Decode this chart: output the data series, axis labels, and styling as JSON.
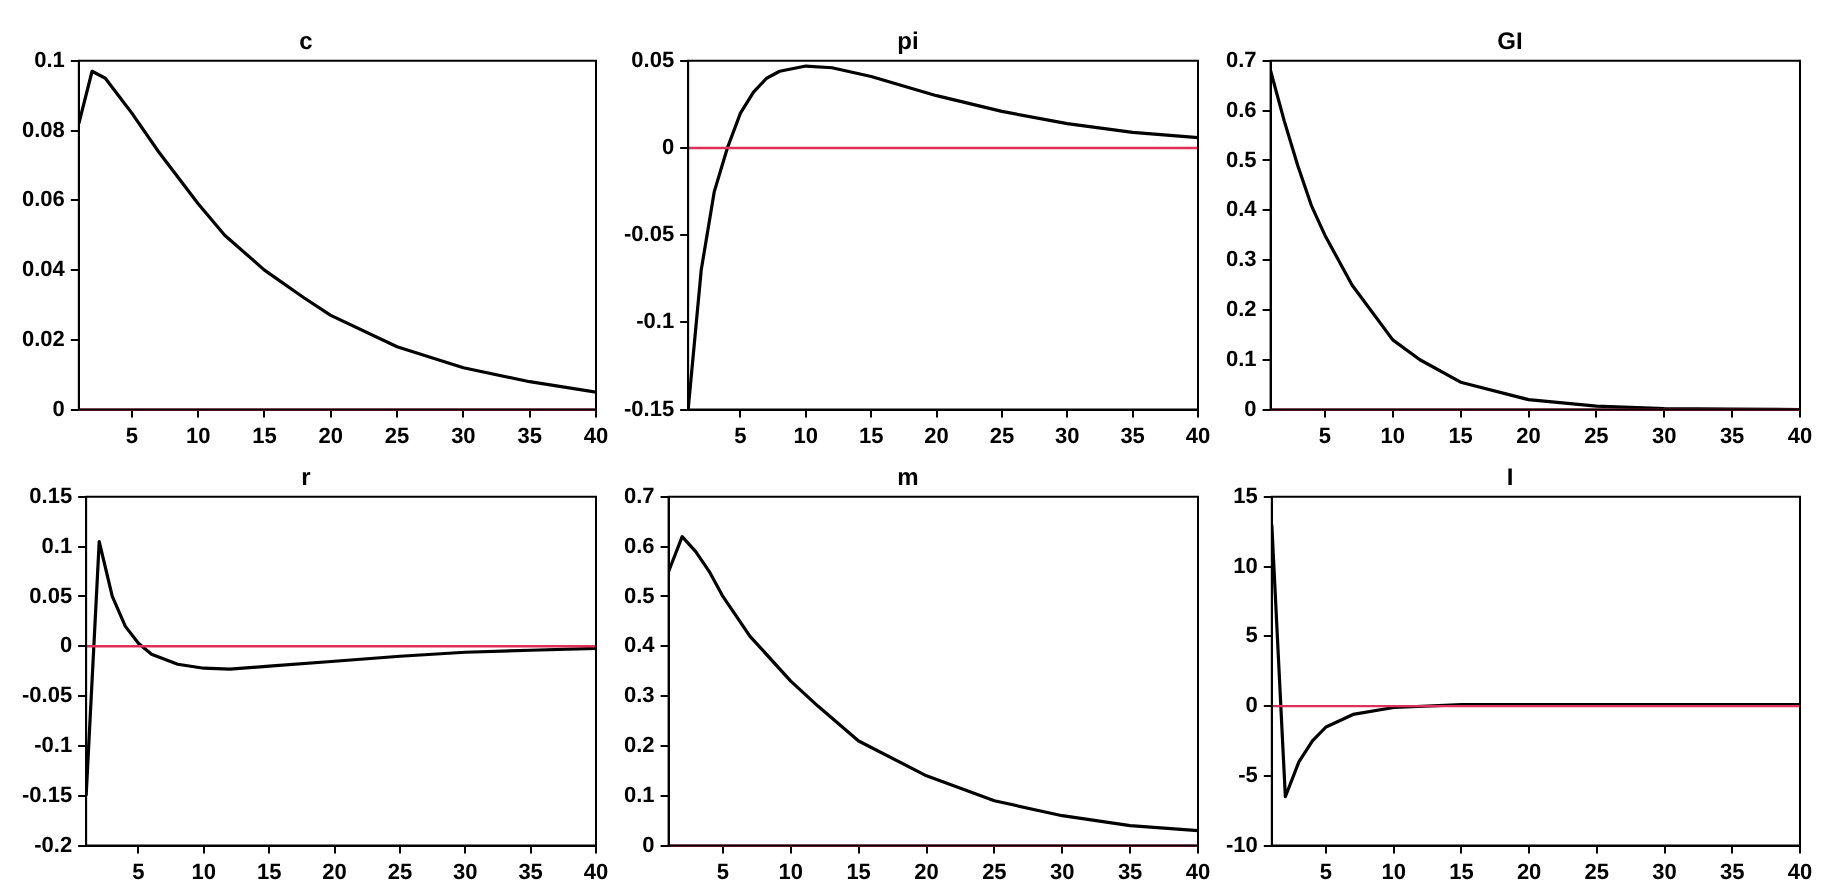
{
  "chart_data": [
    {
      "type": "line",
      "title": "c",
      "x": [
        1,
        2,
        3,
        4,
        5,
        7,
        10,
        12,
        15,
        18,
        20,
        25,
        30,
        35,
        40
      ],
      "series": [
        {
          "color": "#000000",
          "values": [
            0.082,
            0.097,
            0.095,
            0.09,
            0.085,
            0.074,
            0.059,
            0.05,
            0.04,
            0.032,
            0.027,
            0.018,
            0.012,
            0.008,
            0.005
          ]
        }
      ],
      "xlim": [
        1,
        40
      ],
      "xticks": [
        5,
        10,
        15,
        20,
        25,
        30,
        35,
        40
      ],
      "ylim": [
        0,
        0.1
      ],
      "yticks": [
        0,
        0.02,
        0.04,
        0.06,
        0.08,
        0.1
      ],
      "ref_lines": [
        {
          "axis": "y",
          "value": 0,
          "color": "#e0305a"
        }
      ]
    },
    {
      "type": "line",
      "title": "pi",
      "x": [
        1,
        2,
        3,
        4,
        5,
        6,
        7,
        8,
        10,
        12,
        15,
        20,
        25,
        30,
        35,
        40
      ],
      "series": [
        {
          "color": "#000000",
          "values": [
            -0.15,
            -0.07,
            -0.025,
            0.0,
            0.02,
            0.032,
            0.04,
            0.044,
            0.047,
            0.046,
            0.041,
            0.03,
            0.021,
            0.014,
            0.009,
            0.006
          ]
        }
      ],
      "xlim": [
        1,
        40
      ],
      "xticks": [
        5,
        10,
        15,
        20,
        25,
        30,
        35,
        40
      ],
      "ylim": [
        -0.15,
        0.05
      ],
      "yticks": [
        -0.15,
        -0.1,
        -0.05,
        0,
        0.05
      ],
      "ref_lines": [
        {
          "axis": "y",
          "value": 0,
          "color": "#e0305a"
        }
      ]
    },
    {
      "type": "line",
      "title": "GI",
      "x": [
        1,
        2,
        3,
        4,
        5,
        7,
        10,
        12,
        15,
        20,
        25,
        30,
        35,
        40
      ],
      "series": [
        {
          "color": "#000000",
          "values": [
            0.68,
            0.58,
            0.49,
            0.41,
            0.35,
            0.25,
            0.14,
            0.1,
            0.055,
            0.02,
            0.007,
            0.002,
            0.001,
            0
          ]
        }
      ],
      "xlim": [
        1,
        40
      ],
      "xticks": [
        5,
        10,
        15,
        20,
        25,
        30,
        35,
        40
      ],
      "ylim": [
        0,
        0.7
      ],
      "yticks": [
        0,
        0.1,
        0.2,
        0.3,
        0.4,
        0.5,
        0.6,
        0.7
      ],
      "ref_lines": [
        {
          "axis": "y",
          "value": 0,
          "color": "#e0305a"
        }
      ]
    },
    {
      "type": "line",
      "title": "r",
      "x": [
        1,
        2,
        3,
        4,
        5,
        6,
        8,
        10,
        12,
        15,
        20,
        25,
        30,
        35,
        40
      ],
      "series": [
        {
          "color": "#000000",
          "values": [
            -0.15,
            0.105,
            0.05,
            0.02,
            0.003,
            -0.008,
            -0.018,
            -0.022,
            -0.023,
            -0.02,
            -0.015,
            -0.01,
            -0.006,
            -0.004,
            -0.002
          ]
        }
      ],
      "xlim": [
        1,
        40
      ],
      "xticks": [
        5,
        10,
        15,
        20,
        25,
        30,
        35,
        40
      ],
      "ylim": [
        -0.2,
        0.15
      ],
      "yticks": [
        -0.2,
        -0.15,
        -0.1,
        -0.05,
        0,
        0.05,
        0.1,
        0.15
      ],
      "ref_lines": [
        {
          "axis": "y",
          "value": 0,
          "color": "#e0305a"
        }
      ]
    },
    {
      "type": "line",
      "title": "m",
      "x": [
        1,
        2,
        3,
        4,
        5,
        7,
        10,
        12,
        15,
        20,
        25,
        30,
        35,
        40
      ],
      "series": [
        {
          "color": "#000000",
          "values": [
            0.55,
            0.62,
            0.59,
            0.55,
            0.5,
            0.42,
            0.33,
            0.28,
            0.21,
            0.14,
            0.09,
            0.06,
            0.04,
            0.03
          ]
        }
      ],
      "xlim": [
        1,
        40
      ],
      "xticks": [
        5,
        10,
        15,
        20,
        25,
        30,
        35,
        40
      ],
      "ylim": [
        0,
        0.7
      ],
      "yticks": [
        0,
        0.1,
        0.2,
        0.3,
        0.4,
        0.5,
        0.6,
        0.7
      ],
      "ref_lines": [
        {
          "axis": "y",
          "value": 0,
          "color": "#e0305a"
        }
      ]
    },
    {
      "type": "line",
      "title": "I",
      "x": [
        1,
        2,
        3,
        4,
        5,
        7,
        10,
        15,
        20,
        30,
        40
      ],
      "series": [
        {
          "color": "#000000",
          "values": [
            13,
            -6.5,
            -4,
            -2.5,
            -1.5,
            -0.6,
            -0.1,
            0.1,
            0.1,
            0.1,
            0.1
          ]
        }
      ],
      "xlim": [
        1,
        40
      ],
      "xticks": [
        5,
        10,
        15,
        20,
        25,
        30,
        35,
        40
      ],
      "ylim": [
        -10,
        15
      ],
      "yticks": [
        -10,
        -5,
        0,
        5,
        10,
        15
      ],
      "ref_lines": [
        {
          "axis": "y",
          "value": 0,
          "color": "#e0305a"
        }
      ]
    }
  ]
}
